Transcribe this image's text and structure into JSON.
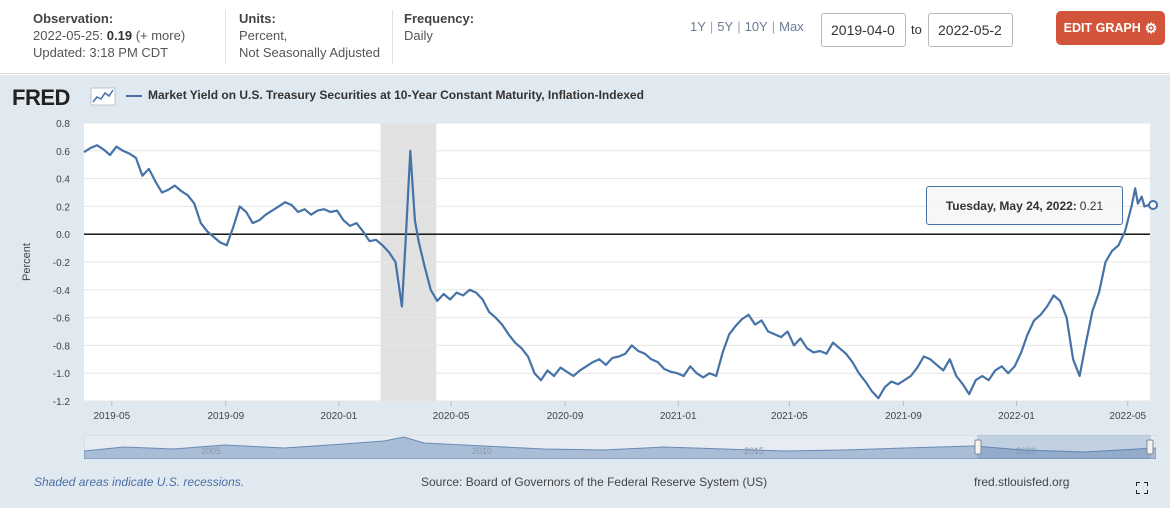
{
  "header": {
    "observation_label": "Observation:",
    "observation_date": "2022-05-25:",
    "observation_value": "0.19",
    "observation_more": "(+ more)",
    "updated": "Updated: 3:18 PM CDT",
    "units_label": "Units:",
    "units_line1": "Percent,",
    "units_line2": "Not Seasonally Adjusted",
    "frequency_label": "Frequency:",
    "frequency_value": "Daily",
    "ranges": [
      "1Y",
      "5Y",
      "10Y",
      "Max"
    ],
    "date_start": "2019-04-0",
    "date_end": "2022-05-2",
    "to_label": "to",
    "edit_button": "EDIT GRAPH",
    "edit_button_color": "#d2553b"
  },
  "logo_text": "FRED",
  "tooltip": {
    "date": "Tuesday, May 24, 2022:",
    "value": "0.21"
  },
  "footer": {
    "recessions_note": "Shaded areas indicate U.S. recessions.",
    "source": "Source: Board of Governors of the Federal Reserve System (US)",
    "site": "fred.stlouisfed.org"
  },
  "navigator_labels": [
    "2005",
    "2010",
    "2015",
    "2020"
  ],
  "chart_data": {
    "type": "line",
    "title": "",
    "legend": "Market Yield on U.S. Treasury Securities at 10-Year Constant Maturity, Inflation-Indexed",
    "ylabel": "Percent",
    "xlabel": "",
    "ylim": [
      -1.2,
      0.8
    ],
    "yticks": [
      "0.8",
      "0.6",
      "0.4",
      "0.2",
      "0.0",
      "-0.2",
      "-0.4",
      "-0.6",
      "-0.8",
      "-1.0",
      "-1.2"
    ],
    "xlim": [
      "2019-04-01",
      "2022-05-25"
    ],
    "xticks": [
      "2019-05",
      "2019-09",
      "2020-01",
      "2020-05",
      "2020-09",
      "2021-01",
      "2021-05",
      "2021-09",
      "2022-01",
      "2022-05"
    ],
    "grid": true,
    "zero_line": true,
    "line_color": "#4572a7",
    "recession_shading": [
      "2020-02-15",
      "2020-04-15"
    ],
    "series": [
      {
        "name": "Market Yield on U.S. Treasury Securities at 10-Year Constant Maturity, Inflation-Indexed",
        "points": [
          [
            "2019-04-01",
            0.59
          ],
          [
            "2019-04-08",
            0.62
          ],
          [
            "2019-04-15",
            0.64
          ],
          [
            "2019-04-22",
            0.61
          ],
          [
            "2019-04-29",
            0.57
          ],
          [
            "2019-05-06",
            0.63
          ],
          [
            "2019-05-13",
            0.6
          ],
          [
            "2019-05-20",
            0.58
          ],
          [
            "2019-05-27",
            0.55
          ],
          [
            "2019-06-03",
            0.42
          ],
          [
            "2019-06-10",
            0.47
          ],
          [
            "2019-06-17",
            0.38
          ],
          [
            "2019-06-24",
            0.3
          ],
          [
            "2019-07-01",
            0.32
          ],
          [
            "2019-07-08",
            0.35
          ],
          [
            "2019-07-15",
            0.31
          ],
          [
            "2019-07-22",
            0.28
          ],
          [
            "2019-07-29",
            0.22
          ],
          [
            "2019-08-05",
            0.08
          ],
          [
            "2019-08-12",
            0.02
          ],
          [
            "2019-08-19",
            -0.02
          ],
          [
            "2019-08-26",
            -0.06
          ],
          [
            "2019-09-02",
            -0.08
          ],
          [
            "2019-09-09",
            0.05
          ],
          [
            "2019-09-16",
            0.2
          ],
          [
            "2019-09-23",
            0.16
          ],
          [
            "2019-09-30",
            0.08
          ],
          [
            "2019-10-07",
            0.1
          ],
          [
            "2019-10-14",
            0.14
          ],
          [
            "2019-10-21",
            0.17
          ],
          [
            "2019-10-28",
            0.2
          ],
          [
            "2019-11-04",
            0.23
          ],
          [
            "2019-11-11",
            0.21
          ],
          [
            "2019-11-18",
            0.16
          ],
          [
            "2019-11-25",
            0.18
          ],
          [
            "2019-12-02",
            0.14
          ],
          [
            "2019-12-09",
            0.17
          ],
          [
            "2019-12-16",
            0.18
          ],
          [
            "2019-12-23",
            0.16
          ],
          [
            "2019-12-30",
            0.17
          ],
          [
            "2020-01-06",
            0.1
          ],
          [
            "2020-01-13",
            0.06
          ],
          [
            "2020-01-20",
            0.08
          ],
          [
            "2020-01-27",
            0.02
          ],
          [
            "2020-02-03",
            -0.05
          ],
          [
            "2020-02-10",
            -0.04
          ],
          [
            "2020-02-17",
            -0.08
          ],
          [
            "2020-02-24",
            -0.13
          ],
          [
            "2020-03-02",
            -0.2
          ],
          [
            "2020-03-09",
            -0.52
          ],
          [
            "2020-03-13",
            -0.04
          ],
          [
            "2020-03-18",
            0.6
          ],
          [
            "2020-03-23",
            0.1
          ],
          [
            "2020-03-27",
            -0.05
          ],
          [
            "2020-04-02",
            -0.22
          ],
          [
            "2020-04-09",
            -0.4
          ],
          [
            "2020-04-16",
            -0.48
          ],
          [
            "2020-04-23",
            -0.43
          ],
          [
            "2020-04-30",
            -0.47
          ],
          [
            "2020-05-07",
            -0.42
          ],
          [
            "2020-05-14",
            -0.44
          ],
          [
            "2020-05-21",
            -0.4
          ],
          [
            "2020-05-28",
            -0.42
          ],
          [
            "2020-06-04",
            -0.47
          ],
          [
            "2020-06-11",
            -0.56
          ],
          [
            "2020-06-18",
            -0.6
          ],
          [
            "2020-06-25",
            -0.65
          ],
          [
            "2020-07-02",
            -0.72
          ],
          [
            "2020-07-09",
            -0.78
          ],
          [
            "2020-07-16",
            -0.82
          ],
          [
            "2020-07-23",
            -0.88
          ],
          [
            "2020-07-30",
            -1.0
          ],
          [
            "2020-08-06",
            -1.05
          ],
          [
            "2020-08-13",
            -0.98
          ],
          [
            "2020-08-20",
            -1.02
          ],
          [
            "2020-08-27",
            -0.96
          ],
          [
            "2020-09-03",
            -0.99
          ],
          [
            "2020-09-10",
            -1.02
          ],
          [
            "2020-09-17",
            -0.98
          ],
          [
            "2020-09-24",
            -0.95
          ],
          [
            "2020-10-01",
            -0.92
          ],
          [
            "2020-10-08",
            -0.9
          ],
          [
            "2020-10-15",
            -0.94
          ],
          [
            "2020-10-22",
            -0.89
          ],
          [
            "2020-10-29",
            -0.88
          ],
          [
            "2020-11-05",
            -0.86
          ],
          [
            "2020-11-12",
            -0.8
          ],
          [
            "2020-11-19",
            -0.84
          ],
          [
            "2020-11-26",
            -0.86
          ],
          [
            "2020-12-03",
            -0.9
          ],
          [
            "2020-12-10",
            -0.92
          ],
          [
            "2020-12-17",
            -0.97
          ],
          [
            "2020-12-24",
            -0.99
          ],
          [
            "2020-12-31",
            -1.0
          ],
          [
            "2021-01-07",
            -1.02
          ],
          [
            "2021-01-14",
            -0.95
          ],
          [
            "2021-01-21",
            -1.0
          ],
          [
            "2021-01-28",
            -1.03
          ],
          [
            "2021-02-04",
            -1.0
          ],
          [
            "2021-02-11",
            -1.02
          ],
          [
            "2021-02-18",
            -0.85
          ],
          [
            "2021-02-25",
            -0.72
          ],
          [
            "2021-03-04",
            -0.66
          ],
          [
            "2021-03-11",
            -0.61
          ],
          [
            "2021-03-18",
            -0.58
          ],
          [
            "2021-03-25",
            -0.65
          ],
          [
            "2021-04-01",
            -0.62
          ],
          [
            "2021-04-08",
            -0.7
          ],
          [
            "2021-04-15",
            -0.72
          ],
          [
            "2021-04-22",
            -0.74
          ],
          [
            "2021-04-29",
            -0.7
          ],
          [
            "2021-05-06",
            -0.8
          ],
          [
            "2021-05-13",
            -0.75
          ],
          [
            "2021-05-20",
            -0.82
          ],
          [
            "2021-05-27",
            -0.85
          ],
          [
            "2021-06-03",
            -0.84
          ],
          [
            "2021-06-10",
            -0.86
          ],
          [
            "2021-06-17",
            -0.78
          ],
          [
            "2021-06-24",
            -0.82
          ],
          [
            "2021-07-01",
            -0.86
          ],
          [
            "2021-07-08",
            -0.92
          ],
          [
            "2021-07-15",
            -1.0
          ],
          [
            "2021-07-22",
            -1.06
          ],
          [
            "2021-07-29",
            -1.13
          ],
          [
            "2021-08-05",
            -1.18
          ],
          [
            "2021-08-12",
            -1.1
          ],
          [
            "2021-08-19",
            -1.06
          ],
          [
            "2021-08-26",
            -1.08
          ],
          [
            "2021-09-02",
            -1.05
          ],
          [
            "2021-09-09",
            -1.02
          ],
          [
            "2021-09-16",
            -0.96
          ],
          [
            "2021-09-23",
            -0.88
          ],
          [
            "2021-09-30",
            -0.9
          ],
          [
            "2021-10-07",
            -0.94
          ],
          [
            "2021-10-14",
            -0.98
          ],
          [
            "2021-10-21",
            -0.9
          ],
          [
            "2021-10-28",
            -1.02
          ],
          [
            "2021-11-04",
            -1.08
          ],
          [
            "2021-11-11",
            -1.15
          ],
          [
            "2021-11-18",
            -1.05
          ],
          [
            "2021-11-25",
            -1.02
          ],
          [
            "2021-12-02",
            -1.05
          ],
          [
            "2021-12-09",
            -0.98
          ],
          [
            "2021-12-16",
            -0.95
          ],
          [
            "2021-12-23",
            -1.0
          ],
          [
            "2021-12-30",
            -0.95
          ],
          [
            "2022-01-06",
            -0.85
          ],
          [
            "2022-01-13",
            -0.72
          ],
          [
            "2022-01-20",
            -0.62
          ],
          [
            "2022-01-27",
            -0.58
          ],
          [
            "2022-02-03",
            -0.52
          ],
          [
            "2022-02-10",
            -0.44
          ],
          [
            "2022-02-17",
            -0.48
          ],
          [
            "2022-02-24",
            -0.6
          ],
          [
            "2022-03-03",
            -0.9
          ],
          [
            "2022-03-10",
            -1.02
          ],
          [
            "2022-03-17",
            -0.78
          ],
          [
            "2022-03-24",
            -0.55
          ],
          [
            "2022-03-31",
            -0.42
          ],
          [
            "2022-04-07",
            -0.2
          ],
          [
            "2022-04-14",
            -0.12
          ],
          [
            "2022-04-21",
            -0.08
          ],
          [
            "2022-04-28",
            0.02
          ],
          [
            "2022-05-05",
            0.2
          ],
          [
            "2022-05-09",
            0.33
          ],
          [
            "2022-05-12",
            0.22
          ],
          [
            "2022-05-16",
            0.27
          ],
          [
            "2022-05-19",
            0.2
          ],
          [
            "2022-05-24",
            0.21
          ],
          [
            "2022-05-25",
            0.19
          ]
        ]
      }
    ]
  }
}
